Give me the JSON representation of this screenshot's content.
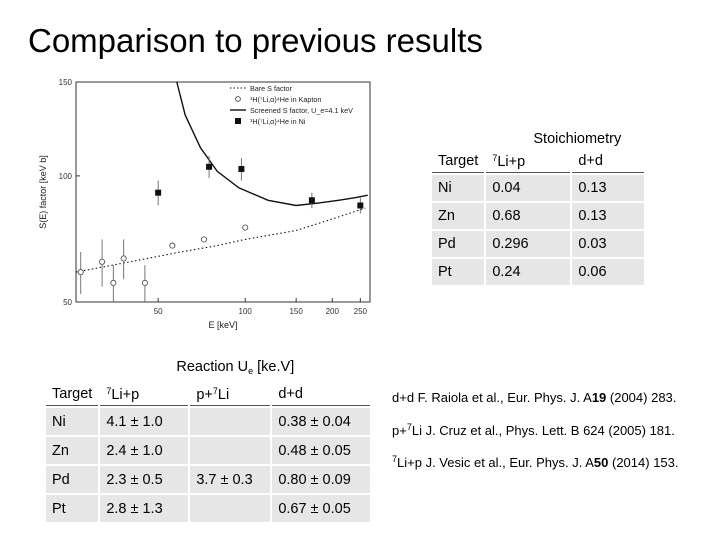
{
  "slide": {
    "title": "Comparison to previous results"
  },
  "chart_data": {
    "type": "scatter",
    "xlabel": "E [keV]",
    "ylabel": "S(E) factor [keV b]",
    "xscale": "log",
    "yscale": "log",
    "xlim": [
      26,
      270
    ],
    "ylim": [
      58,
      150
    ],
    "xticks": [
      "50",
      "100",
      "150",
      "200",
      "250"
    ],
    "yticks": [
      "50",
      "100",
      "150"
    ],
    "legend": {
      "placement": "top-right",
      "entries": [
        {
          "marker": "dotted-line",
          "label": "Bare S factor"
        },
        {
          "marker": "open-circle",
          "label": "¹H(⁷Li,α)⁴He in Kapton"
        },
        {
          "marker": "solid-line",
          "label": "Screened S factor, U_e=4.1 keV"
        },
        {
          "marker": "filled-square",
          "label": "¹H(⁷Li,α)⁴He in Ni"
        }
      ]
    },
    "series": [
      {
        "marker": "open-circle",
        "points": [
          {
            "x": 27,
            "y": 66,
            "err": 6
          },
          {
            "x": 32,
            "y": 69,
            "err": 7
          },
          {
            "x": 35,
            "y": 63,
            "err": 5
          },
          {
            "x": 38,
            "y": 70,
            "err": 6
          },
          {
            "x": 45,
            "y": 63,
            "err": 5
          },
          {
            "x": 56,
            "y": 74,
            "err": 1
          },
          {
            "x": 72,
            "y": 76,
            "err": 1
          },
          {
            "x": 100,
            "y": 80,
            "err": 1
          }
        ]
      },
      {
        "marker": "filled-square",
        "points": [
          {
            "x": 50,
            "y": 93,
            "err": 5
          },
          {
            "x": 75,
            "y": 104,
            "err": 5
          },
          {
            "x": 97,
            "y": 103,
            "err": 5
          },
          {
            "x": 170,
            "y": 90,
            "err": 3
          },
          {
            "x": 250,
            "y": 88,
            "err": 3
          }
        ]
      },
      {
        "line": "dotted",
        "points": [
          [
            26,
            66
          ],
          [
            40,
            69
          ],
          [
            60,
            72
          ],
          [
            80,
            74
          ],
          [
            100,
            76
          ],
          [
            150,
            79
          ],
          [
            200,
            83
          ],
          [
            260,
            87
          ]
        ]
      },
      {
        "line": "solid",
        "points": [
          [
            58,
            150
          ],
          [
            62,
            130
          ],
          [
            70,
            113
          ],
          [
            80,
            102
          ],
          [
            95,
            95
          ],
          [
            120,
            90
          ],
          [
            150,
            88
          ],
          [
            180,
            89
          ],
          [
            210,
            90
          ],
          [
            240,
            91
          ],
          [
            265,
            92
          ]
        ]
      }
    ]
  },
  "stoichiometry": {
    "title": "Stoichiometry",
    "headers": [
      "Target",
      "7",
      "Li+p",
      "d+d"
    ],
    "rows": [
      [
        "Ni",
        "0.04",
        "0.13"
      ],
      [
        "Zn",
        "0.68",
        "0.13"
      ],
      [
        "Pd",
        "0.296",
        "0.03"
      ],
      [
        "Pt",
        "0.24",
        "0.06"
      ]
    ]
  },
  "reaction": {
    "title": "Reaction U",
    "title_sub": "e",
    "title_unit": " [ke.V]",
    "headers": [
      "Target",
      "7",
      "Li+p",
      "p+",
      "7",
      "Li",
      "d+d"
    ],
    "rows": [
      [
        "Ni",
        "4.1 ± 1.0",
        "",
        "0.38 ± 0.04"
      ],
      [
        "Zn",
        "2.4 ± 1.0",
        "",
        "0.48 ± 0.05"
      ],
      [
        "Pd",
        "2.3 ± 0.5",
        "3.7 ± 0.3",
        "0.80 ± 0.09"
      ],
      [
        "Pt",
        "2.8 ± 1.3",
        "",
        "0.67 ± 0.05"
      ]
    ]
  },
  "references": [
    {
      "prefix": "d+d F. Raiola et al., Eur. Phys. J. A",
      "vol": "19",
      "rest": " (2004) 283."
    },
    {
      "prefix": "p+",
      "sup": "7",
      "mid": "Li J. Cruz et al., Phys. Lett. B 624 (2005) 181.",
      "vol": "",
      "rest": ""
    },
    {
      "prefix": "",
      "sup": "7",
      "mid": "Li+p J. Vesic et al., Eur. Phys. J. A",
      "vol": "50",
      "rest": " (2014) 153."
    }
  ]
}
